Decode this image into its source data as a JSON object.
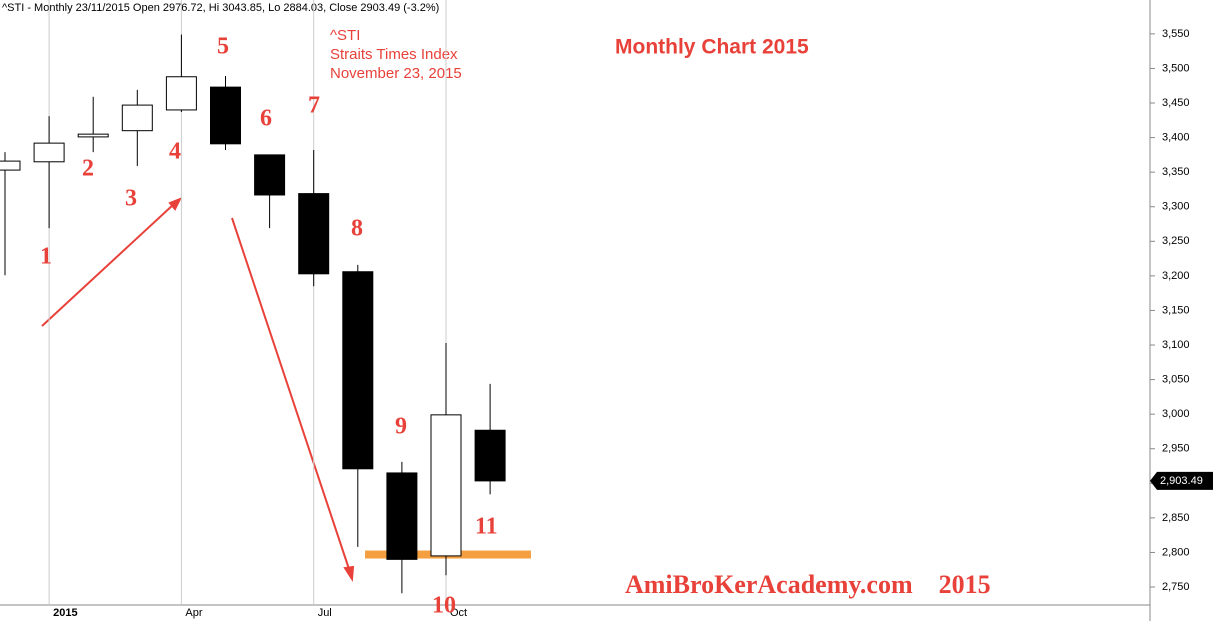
{
  "chart_data": {
    "type": "candlestick",
    "title": "^STI - Monthly 23/11/2015 Open 2976.72, Hi 3043.85, Lo 2884.03, Close 2903.49 (-3.2%)",
    "categories": [
      null,
      "2015",
      null,
      null,
      "Apr",
      null,
      null,
      "Jul",
      null,
      null,
      "Oct",
      null
    ],
    "open": [
      3353,
      3365,
      3401,
      3410,
      3440,
      3473,
      3375,
      3319,
      3206,
      2915,
      2795,
      2976.72
    ],
    "high": [
      3379,
      3431,
      3459,
      3469,
      3549,
      3489,
      3375,
      3382,
      3216,
      2931,
      3103,
      3043.85
    ],
    "low": [
      3201,
      3269,
      3379,
      3359,
      3437,
      3382,
      3269,
      3185,
      2808,
      2741,
      2767,
      2884.03
    ],
    "close": [
      3366,
      3392,
      3405,
      3447,
      3488,
      3391,
      3317,
      3203,
      2921,
      2790,
      2999,
      2903.49
    ],
    "up_color": "#ffffff",
    "down_color": "#000000",
    "ylim": [
      2724,
      3599
    ],
    "yticks": [
      {
        "value": 2750,
        "label": "2,750"
      },
      {
        "value": 2800,
        "label": "2,800"
      },
      {
        "value": 2850,
        "label": "2,850"
      },
      {
        "value": 2900,
        "label": "2,900"
      },
      {
        "value": 2950,
        "label": "2,950"
      },
      {
        "value": 3000,
        "label": "3,000"
      },
      {
        "value": 3050,
        "label": "3,050"
      },
      {
        "value": 3100,
        "label": "3,100"
      },
      {
        "value": 3150,
        "label": "3,150"
      },
      {
        "value": 3200,
        "label": "3,200"
      },
      {
        "value": 3250,
        "label": "3,250"
      },
      {
        "value": 3300,
        "label": "3,300"
      },
      {
        "value": 3350,
        "label": "3,350"
      },
      {
        "value": 3400,
        "label": "3,400"
      },
      {
        "value": 3450,
        "label": "3,450"
      },
      {
        "value": 3500,
        "label": "3,500"
      },
      {
        "value": 3550,
        "label": "3,550"
      }
    ],
    "last_price": {
      "value": 2903.49,
      "label": "2,903.49"
    },
    "hline": {
      "value": 2797,
      "color": "#f4a040"
    },
    "chart_title": "Monthly Chart 2015",
    "symbol_note": [
      "^STI",
      "Straits Times Index",
      "November 23, 2015"
    ],
    "watermark": "AmiBroKerAcademy.com    2015",
    "annotations": [
      "1",
      "2",
      "3",
      "4",
      "5",
      "6",
      "7",
      "8",
      "9",
      "10",
      "11"
    ]
  }
}
